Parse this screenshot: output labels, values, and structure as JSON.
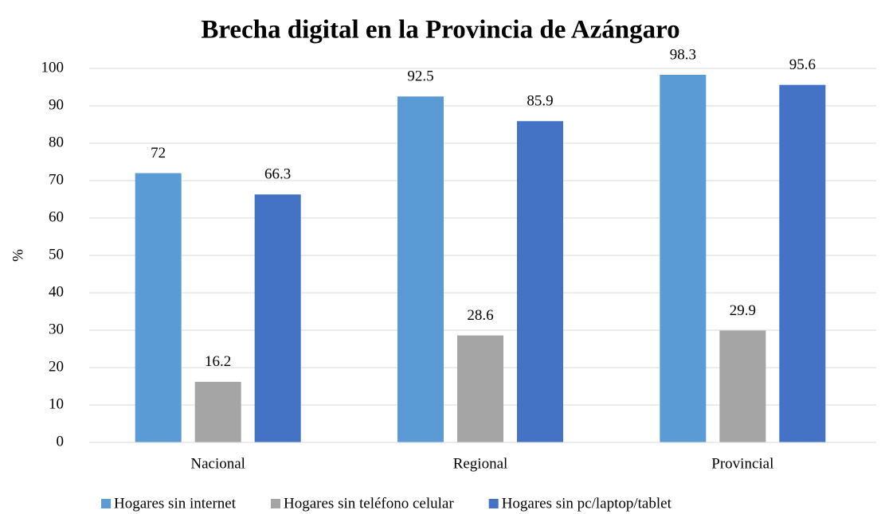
{
  "chart_data": {
    "type": "bar",
    "title": "Brecha digital en la Provincia de Azángaro",
    "y_label": "%",
    "categories": [
      "Nacional",
      "Regional",
      "Provincial"
    ],
    "series": [
      {
        "name": "Hogares sin internet",
        "color": "#5b9bd5",
        "values": [
          72,
          92.5,
          98.3
        ]
      },
      {
        "name": "Hogares sin teléfono celular",
        "color": "#a5a5a5",
        "values": [
          16.2,
          28.6,
          29.9
        ]
      },
      {
        "name": "Hogares sin pc/laptop/tablet",
        "color": "#4472c4",
        "values": [
          66.3,
          85.9,
          95.6
        ]
      }
    ],
    "ylim": [
      0,
      100
    ],
    "yticks": [
      0,
      10,
      20,
      30,
      40,
      50,
      60,
      70,
      80,
      90,
      100
    ],
    "grid": true,
    "legend": "bottom"
  }
}
